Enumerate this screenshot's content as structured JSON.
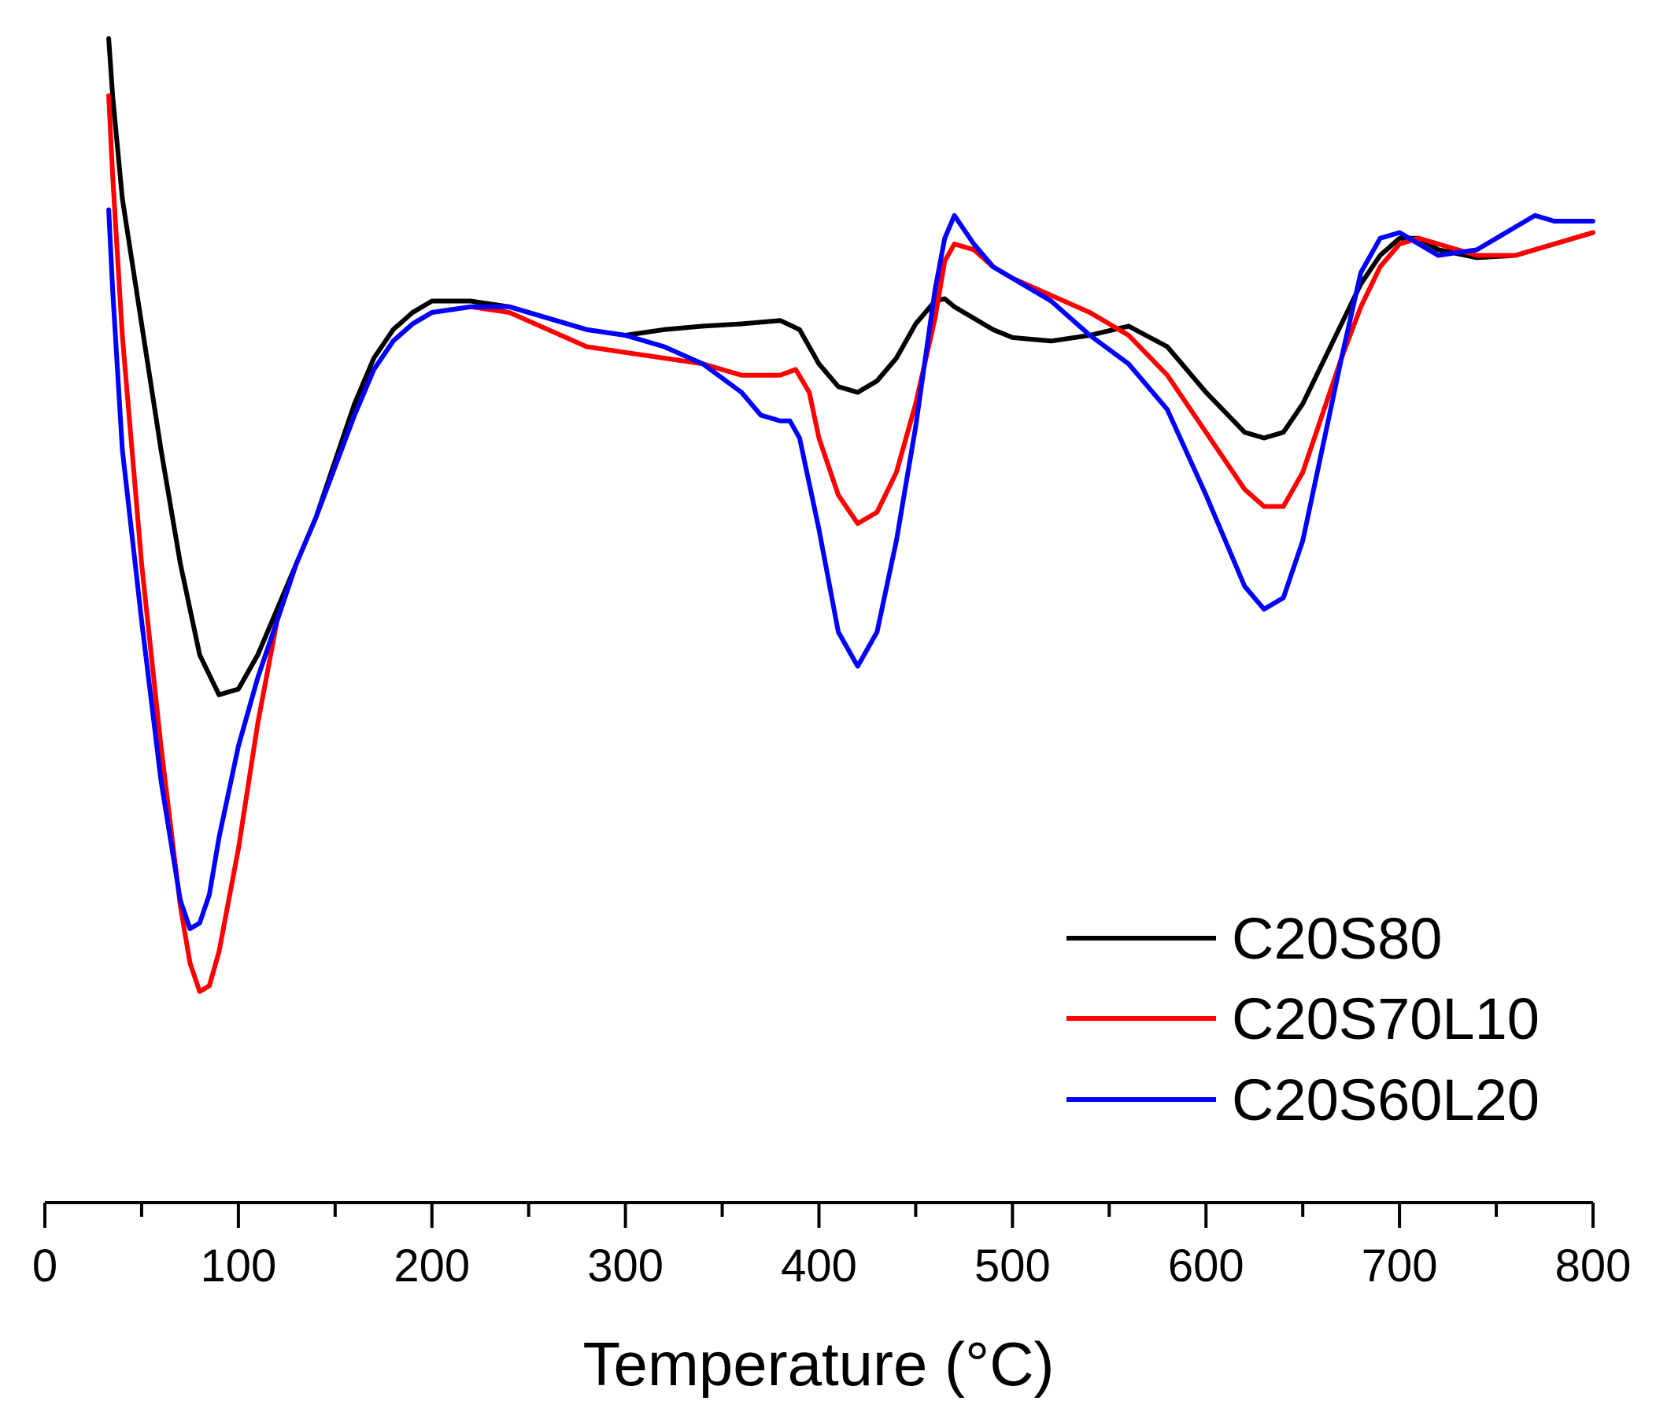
{
  "chart_data": {
    "type": "line",
    "title": "",
    "xlabel": "Temperature (°C)",
    "ylabel": "",
    "xlim": [
      0,
      800
    ],
    "ylim": [
      0,
      100
    ],
    "x_ticks": [
      0,
      100,
      200,
      300,
      400,
      500,
      600,
      700,
      800
    ],
    "x_tick_labels": [
      "0",
      "100",
      "200",
      "300",
      "400",
      "500",
      "600",
      "700",
      "800"
    ],
    "minor_ticks": [
      50,
      150,
      250,
      350,
      450,
      550,
      650,
      750
    ],
    "y_axis_visible": false,
    "grid": false,
    "legend_position": "lower-right",
    "series": [
      {
        "name": "C20S80",
        "color": "#000000",
        "points": [
          [
            33,
            98
          ],
          [
            35,
            93
          ],
          [
            40,
            84
          ],
          [
            50,
            73
          ],
          [
            60,
            62
          ],
          [
            70,
            52
          ],
          [
            80,
            44
          ],
          [
            90,
            40.5
          ],
          [
            100,
            41
          ],
          [
            110,
            44
          ],
          [
            120,
            48
          ],
          [
            130,
            52
          ],
          [
            140,
            56
          ],
          [
            150,
            61
          ],
          [
            160,
            66
          ],
          [
            170,
            70
          ],
          [
            180,
            72.5
          ],
          [
            190,
            74
          ],
          [
            200,
            75
          ],
          [
            220,
            75
          ],
          [
            240,
            74.5
          ],
          [
            260,
            73.5
          ],
          [
            280,
            72.5
          ],
          [
            300,
            72
          ],
          [
            320,
            72.5
          ],
          [
            340,
            72.8
          ],
          [
            360,
            73
          ],
          [
            380,
            73.3
          ],
          [
            390,
            72.5
          ],
          [
            400,
            69.5
          ],
          [
            410,
            67.5
          ],
          [
            420,
            67
          ],
          [
            430,
            68
          ],
          [
            440,
            70
          ],
          [
            450,
            73
          ],
          [
            460,
            75
          ],
          [
            465,
            75.2
          ],
          [
            470,
            74.5
          ],
          [
            480,
            73.5
          ],
          [
            490,
            72.5
          ],
          [
            500,
            71.8
          ],
          [
            520,
            71.5
          ],
          [
            540,
            72
          ],
          [
            560,
            72.8
          ],
          [
            580,
            71
          ],
          [
            600,
            67
          ],
          [
            620,
            63.5
          ],
          [
            630,
            63
          ],
          [
            640,
            63.5
          ],
          [
            650,
            66
          ],
          [
            660,
            69.5
          ],
          [
            670,
            73
          ],
          [
            680,
            76.5
          ],
          [
            690,
            79
          ],
          [
            700,
            80.5
          ],
          [
            710,
            80.5
          ],
          [
            720,
            79.5
          ],
          [
            740,
            78.8
          ],
          [
            760,
            79
          ],
          [
            780,
            80
          ],
          [
            800,
            81
          ]
        ]
      },
      {
        "name": "C20S70L10",
        "color": "#ff0000",
        "points": [
          [
            33,
            93
          ],
          [
            35,
            86
          ],
          [
            40,
            72
          ],
          [
            50,
            52
          ],
          [
            60,
            36
          ],
          [
            70,
            22
          ],
          [
            75,
            17
          ],
          [
            80,
            14.5
          ],
          [
            85,
            15
          ],
          [
            90,
            18
          ],
          [
            100,
            27
          ],
          [
            110,
            38
          ],
          [
            120,
            47
          ],
          [
            130,
            52
          ],
          [
            140,
            56
          ],
          [
            150,
            60.5
          ],
          [
            160,
            65
          ],
          [
            170,
            69
          ],
          [
            180,
            71.5
          ],
          [
            190,
            73
          ],
          [
            200,
            74
          ],
          [
            220,
            74.5
          ],
          [
            240,
            74
          ],
          [
            260,
            72.5
          ],
          [
            280,
            71
          ],
          [
            300,
            70.5
          ],
          [
            320,
            70
          ],
          [
            340,
            69.5
          ],
          [
            360,
            68.5
          ],
          [
            380,
            68.5
          ],
          [
            388,
            69
          ],
          [
            395,
            67
          ],
          [
            400,
            63
          ],
          [
            410,
            58
          ],
          [
            420,
            55.5
          ],
          [
            430,
            56.5
          ],
          [
            440,
            60
          ],
          [
            450,
            66
          ],
          [
            460,
            73.5
          ],
          [
            465,
            78.5
          ],
          [
            470,
            80
          ],
          [
            480,
            79.5
          ],
          [
            490,
            78
          ],
          [
            500,
            77
          ],
          [
            520,
            75.5
          ],
          [
            540,
            74
          ],
          [
            560,
            72
          ],
          [
            580,
            68.5
          ],
          [
            600,
            63.5
          ],
          [
            620,
            58.5
          ],
          [
            630,
            57
          ],
          [
            640,
            57
          ],
          [
            650,
            60
          ],
          [
            660,
            65
          ],
          [
            670,
            70
          ],
          [
            680,
            74.5
          ],
          [
            690,
            78
          ],
          [
            700,
            80
          ],
          [
            710,
            80.5
          ],
          [
            720,
            80
          ],
          [
            740,
            79
          ],
          [
            760,
            79
          ],
          [
            780,
            80
          ],
          [
            800,
            81
          ]
        ]
      },
      {
        "name": "C20S60L20",
        "color": "#0000ff",
        "points": [
          [
            33,
            83
          ],
          [
            35,
            76
          ],
          [
            40,
            62
          ],
          [
            50,
            47
          ],
          [
            60,
            33
          ],
          [
            70,
            22.5
          ],
          [
            75,
            20
          ],
          [
            80,
            20.5
          ],
          [
            85,
            23
          ],
          [
            90,
            28
          ],
          [
            100,
            36
          ],
          [
            110,
            42
          ],
          [
            120,
            47
          ],
          [
            130,
            52
          ],
          [
            140,
            56
          ],
          [
            150,
            60.5
          ],
          [
            160,
            65
          ],
          [
            170,
            69
          ],
          [
            180,
            71.5
          ],
          [
            190,
            73
          ],
          [
            200,
            74
          ],
          [
            220,
            74.5
          ],
          [
            240,
            74.5
          ],
          [
            260,
            73.5
          ],
          [
            280,
            72.5
          ],
          [
            300,
            72
          ],
          [
            320,
            71
          ],
          [
            340,
            69.5
          ],
          [
            360,
            67
          ],
          [
            370,
            65
          ],
          [
            380,
            64.5
          ],
          [
            385,
            64.5
          ],
          [
            390,
            63
          ],
          [
            400,
            55
          ],
          [
            410,
            46
          ],
          [
            420,
            43
          ],
          [
            430,
            46
          ],
          [
            440,
            54
          ],
          [
            450,
            64
          ],
          [
            460,
            76
          ],
          [
            465,
            80.5
          ],
          [
            470,
            82.5
          ],
          [
            480,
            80
          ],
          [
            490,
            78
          ],
          [
            500,
            77
          ],
          [
            520,
            75
          ],
          [
            540,
            72
          ],
          [
            560,
            69.5
          ],
          [
            580,
            65.5
          ],
          [
            600,
            58
          ],
          [
            620,
            50
          ],
          [
            630,
            48
          ],
          [
            640,
            49
          ],
          [
            650,
            54
          ],
          [
            660,
            62
          ],
          [
            670,
            70
          ],
          [
            680,
            77.5
          ],
          [
            690,
            80.5
          ],
          [
            700,
            81
          ],
          [
            710,
            80
          ],
          [
            720,
            79
          ],
          [
            740,
            79.5
          ],
          [
            760,
            81.5
          ],
          [
            770,
            82.5
          ],
          [
            780,
            82
          ],
          [
            800,
            82
          ]
        ]
      }
    ]
  }
}
